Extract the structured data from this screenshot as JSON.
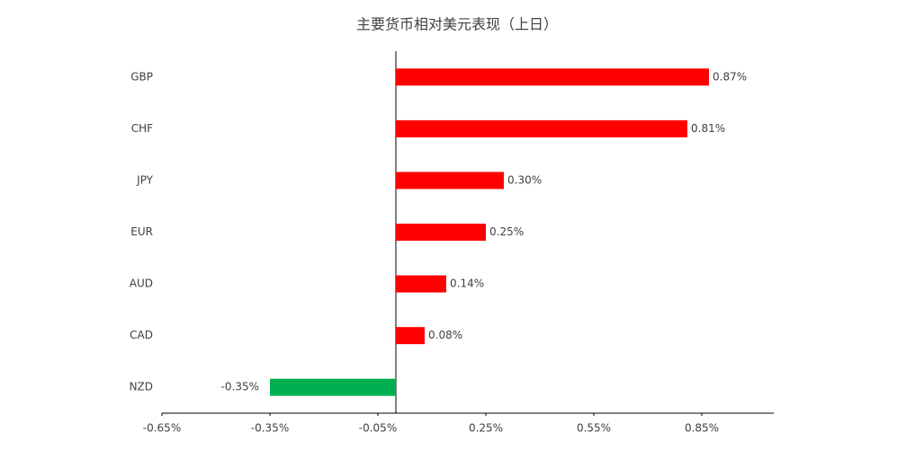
{
  "chart_data": {
    "type": "hbar",
    "title": "主要货币相对美元表现（上日）",
    "categories": [
      "GBP",
      "CHF",
      "JPY",
      "EUR",
      "AUD",
      "CAD",
      "NZD"
    ],
    "values": [
      0.87,
      0.81,
      0.3,
      0.25,
      0.14,
      0.08,
      -0.35
    ],
    "value_labels": [
      "0.87%",
      "0.81%",
      "0.30%",
      "0.25%",
      "0.14%",
      "0.08%",
      "-0.35%"
    ],
    "color": "#ff0000",
    "negative_color": "#00b050",
    "xlim": [
      -0.65,
      1.05
    ],
    "xticks": [
      {
        "value": -0.65,
        "label": "-0.65%"
      },
      {
        "value": -0.35,
        "label": "-0.35%"
      },
      {
        "value": -0.05,
        "label": "-0.05%"
      },
      {
        "value": 0.25,
        "label": "0.25%"
      },
      {
        "value": 0.55,
        "label": "0.55%"
      },
      {
        "value": 0.85,
        "label": "0.85%"
      }
    ],
    "grid": false
  }
}
